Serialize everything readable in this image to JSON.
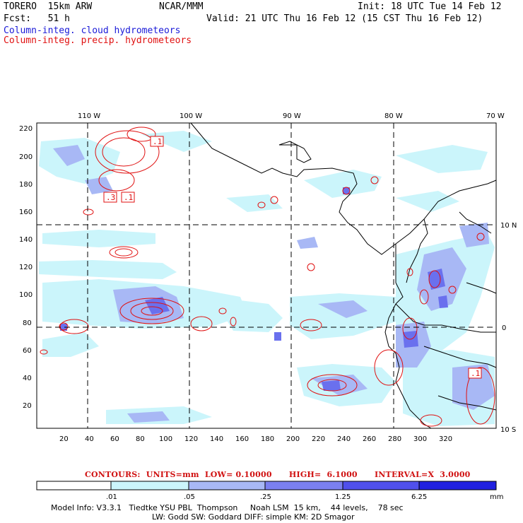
{
  "header": {
    "model": "TORERO  15km ARW",
    "org": "NCAR/MMM",
    "init": "Init: 18 UTC Tue 14 Feb 12",
    "fcst": "Fcst:   51 h",
    "valid": "Valid: 21 UTC Thu 16 Feb 12 (15 CST Thu 16 Feb 12)",
    "field_cloud": "Column-integ. cloud hydrometeors",
    "field_precip": "Column-integ. precip. hydrometeors"
  },
  "axes": {
    "top_labels": [
      "110 W",
      "100 W",
      "90 W",
      "80 W",
      "70 W"
    ],
    "right_labels": [
      "10 N",
      "0",
      "10 S"
    ],
    "left_ticks": [
      "220",
      "200",
      "180",
      "160",
      "140",
      "120",
      "100",
      "80",
      "60",
      "40",
      "20"
    ],
    "bottom_ticks": [
      "20",
      "40",
      "60",
      "80",
      "100",
      "120",
      "140",
      "160",
      "180",
      "200",
      "220",
      "240",
      "260",
      "280",
      "300",
      "320"
    ]
  },
  "box_labels": [
    ".1",
    ".3",
    ".1",
    ".1"
  ],
  "contours_text": "CONTOURS:  UNITS=mm  LOW= 0.10000      HIGH=  6.1000      INTERVAL=X  3.0000",
  "colorbar": {
    "labels": [
      ".01",
      ".05",
      ".25",
      "1.25",
      "6.25"
    ],
    "unit": "mm",
    "colors": [
      "#ffffff",
      "#cbf5fb",
      "#a8b8f5",
      "#7b80f0",
      "#5050ec",
      "#2020e0"
    ]
  },
  "footer": {
    "line1": "Model Info: V3.3.1   Tiedtke YSU PBL  Thompson     Noah LSM  15 km,    44 levels,    78 sec",
    "line2": "LW: Godd SW: Goddard DIFF: simple KM: 2D Smagor"
  }
}
